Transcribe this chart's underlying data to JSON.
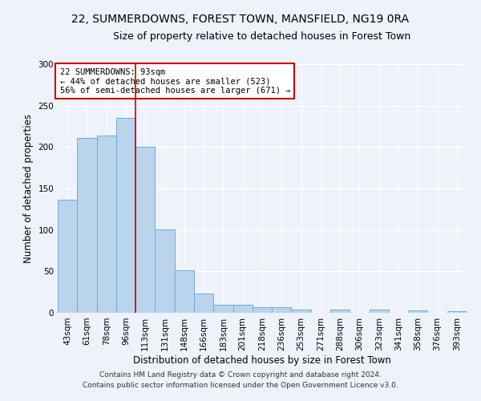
{
  "title_line1": "22, SUMMERDOWNS, FOREST TOWN, MANSFIELD, NG19 0RA",
  "title_line2": "Size of property relative to detached houses in Forest Town",
  "xlabel": "Distribution of detached houses by size in Forest Town",
  "ylabel": "Number of detached properties",
  "categories": [
    "43sqm",
    "61sqm",
    "78sqm",
    "96sqm",
    "113sqm",
    "131sqm",
    "148sqm",
    "166sqm",
    "183sqm",
    "201sqm",
    "218sqm",
    "236sqm",
    "253sqm",
    "271sqm",
    "288sqm",
    "306sqm",
    "323sqm",
    "341sqm",
    "358sqm",
    "376sqm",
    "393sqm"
  ],
  "values": [
    136,
    211,
    214,
    235,
    200,
    101,
    51,
    23,
    10,
    10,
    7,
    7,
    4,
    0,
    4,
    0,
    4,
    0,
    3,
    0,
    2
  ],
  "bar_color": "#bad4ed",
  "bar_edge_color": "#6baed6",
  "vline_x": 3.5,
  "vline_color": "#cc0000",
  "annotation_text": "22 SUMMERDOWNS: 93sqm\n← 44% of detached houses are smaller (523)\n56% of semi-detached houses are larger (671) →",
  "annotation_box_color": "#ffffff",
  "annotation_box_edge": "#cc0000",
  "ylim": [
    0,
    300
  ],
  "yticks": [
    0,
    50,
    100,
    150,
    200,
    250,
    300
  ],
  "background_color": "#eef2fb",
  "footer1": "Contains HM Land Registry data © Crown copyright and database right 2024.",
  "footer2": "Contains public sector information licensed under the Open Government Licence v3.0.",
  "title_fontsize": 10,
  "subtitle_fontsize": 9,
  "axis_label_fontsize": 8.5,
  "tick_fontsize": 7.5,
  "annotation_fontsize": 7.5,
  "footer_fontsize": 6.5
}
